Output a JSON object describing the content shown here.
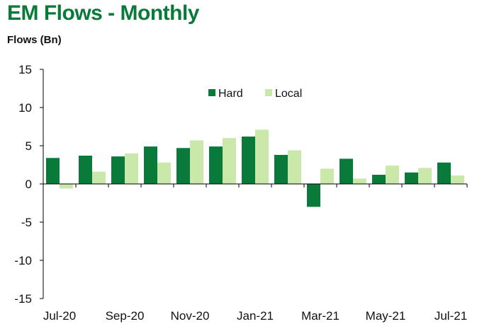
{
  "header": {
    "title": "EM Flows - Monthly",
    "unit_label": "Flows (Bn)"
  },
  "chart_data": {
    "type": "bar",
    "categories": [
      "Jul-20",
      "Aug-20",
      "Sep-20",
      "Oct-20",
      "Nov-20",
      "Dec-20",
      "Jan-21",
      "Feb-21",
      "Mar-21",
      "Apr-21",
      "May-21",
      "Jun-21",
      "Jul-21"
    ],
    "tick_labels": [
      "Jul-20",
      "Sep-20",
      "Nov-20",
      "Jan-21",
      "Mar-21",
      "May-21",
      "Jul-21"
    ],
    "series": [
      {
        "name": "Hard",
        "color": "#0a7a3b",
        "values": [
          3.4,
          3.7,
          3.6,
          4.9,
          4.7,
          4.9,
          6.2,
          3.8,
          -3.0,
          3.3,
          1.2,
          1.5,
          2.8
        ]
      },
      {
        "name": "Local",
        "color": "#c9e8a9",
        "values": [
          -0.6,
          1.6,
          4.0,
          2.8,
          5.7,
          6.0,
          7.1,
          4.4,
          2.0,
          0.7,
          2.4,
          2.1,
          1.1
        ]
      }
    ],
    "title": "EM Flows - Monthly",
    "ylabel": "Flows (Bn)",
    "xlabel": "",
    "ylim": [
      -15,
      15
    ],
    "yticks": [
      -15,
      -10,
      -5,
      0,
      5,
      10,
      15
    ],
    "grid": false,
    "legend": "top-center"
  }
}
